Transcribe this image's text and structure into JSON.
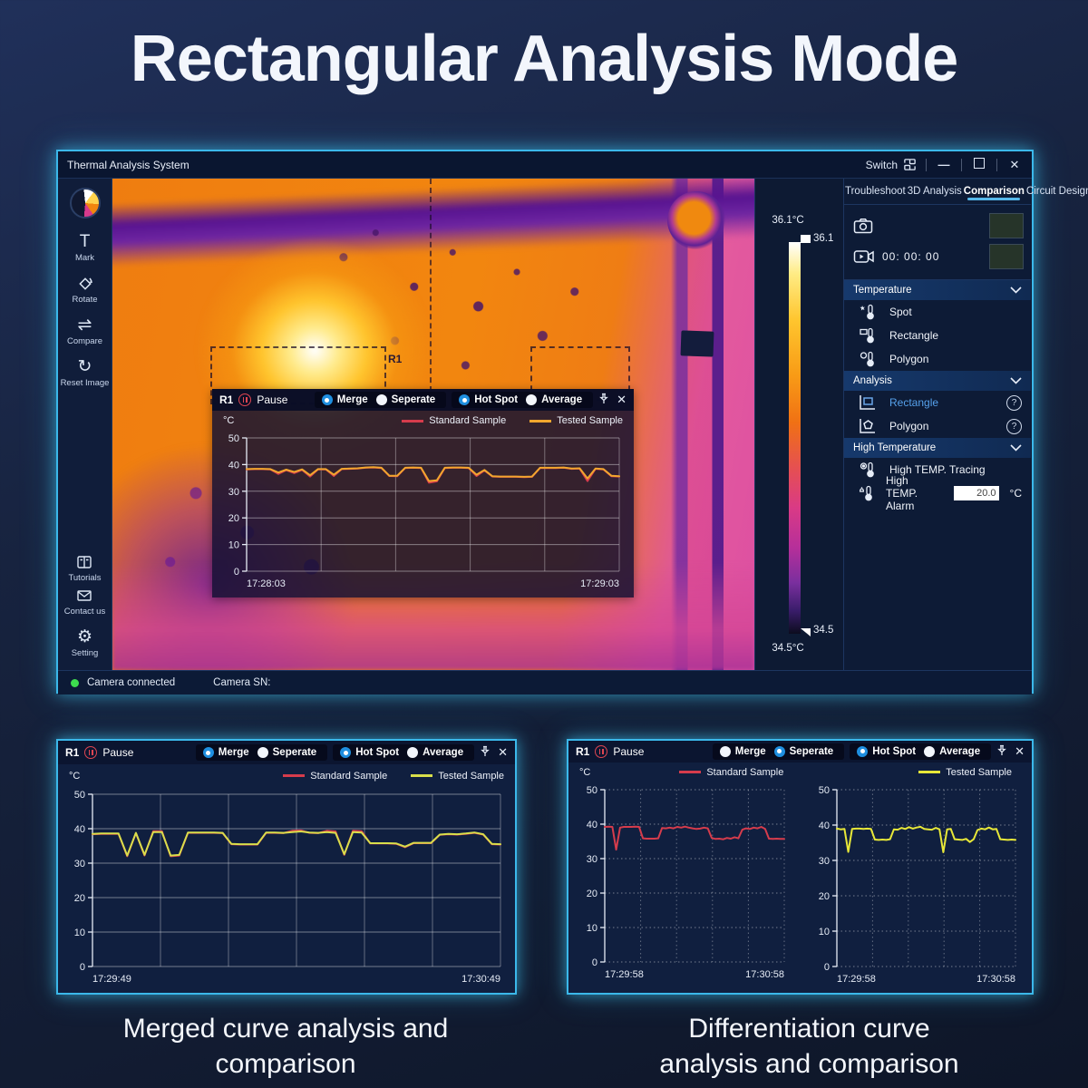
{
  "page": {
    "title": "Rectangular Analysis Mode",
    "caption_left_line1": "Merged curve analysis and",
    "caption_left_line2": "comparison",
    "caption_right_line1": "Differentiation curve",
    "caption_right_line2": "analysis and comparison"
  },
  "window": {
    "title": "Thermal Analysis System",
    "switch_label": "Switch",
    "status_camera": "Camera connected",
    "status_sn": "Camera SN:"
  },
  "sidebar": {
    "items": [
      {
        "label": "Mark"
      },
      {
        "label": "Rotate"
      },
      {
        "label": "Compare"
      },
      {
        "label": "Reset Image"
      }
    ],
    "bottom_items": [
      {
        "label": "Tutorials"
      },
      {
        "label": "Contact us"
      },
      {
        "label": "Setting"
      }
    ]
  },
  "tabs": {
    "items": [
      "Troubleshoot",
      "3D Analysis",
      "Comparison",
      "Circuit Design"
    ],
    "active": "Comparison"
  },
  "capture": {
    "record_time": "00: 00: 00"
  },
  "scale": {
    "max_label": "36.1°C",
    "max_tick": "36.1",
    "min_tick": "34.5",
    "min_label": "34.5°C"
  },
  "sections": {
    "temperature": {
      "title": "Temperature",
      "items": [
        {
          "label": "Spot"
        },
        {
          "label": "Rectangle"
        },
        {
          "label": "Polygon"
        }
      ]
    },
    "analysis": {
      "title": "Analysis",
      "items": [
        {
          "label": "Rectangle"
        },
        {
          "label": "Polygon"
        }
      ]
    },
    "high_temperature": {
      "title": "High Temperature",
      "tracing_label": "High TEMP. Tracing",
      "alarm_label": "High TEMP. Alarm",
      "alarm_value": "20.0",
      "alarm_unit": "°C"
    }
  },
  "roi": {
    "label": "R1"
  },
  "chart_ui": {
    "region": "R1",
    "pause": "Pause",
    "merge": "Merge",
    "seperate": "Seperate",
    "hot_spot": "Hot Spot",
    "average": "Average",
    "unit": "°C",
    "legend_standard": "Standard Sample",
    "legend_tested": "Tested Sample"
  },
  "chart_data": [
    {
      "id": "main-merged-monitor",
      "type": "line",
      "x_labels": [
        "17:28:03",
        "17:29:03"
      ],
      "ylim": [
        0,
        50
      ],
      "yticks": [
        0,
        10,
        20,
        30,
        40,
        50
      ],
      "x_divisions": 5,
      "grid": "solid",
      "modes": {
        "merge": true,
        "seperate": false,
        "hot_spot": true,
        "average": false
      },
      "series": [
        {
          "name": "Standard Sample",
          "color": "#d63c4c",
          "values": [
            38.2,
            38.3,
            38.3,
            38.2,
            36.5,
            37.9,
            36.8,
            38.0,
            35.5,
            38.2,
            38.2,
            35.7,
            38.3,
            38.4,
            38.5,
            38.8,
            38.9,
            38.7,
            35.7,
            35.6,
            38.7,
            38.8,
            38.7,
            33.2,
            33.7,
            38.7,
            38.8,
            38.8,
            38.7,
            35.7,
            37.8,
            35.5,
            35.4,
            35.4,
            35.4,
            35.3,
            35.4,
            38.7,
            38.7,
            38.7,
            38.8,
            38.4,
            38.5,
            33.8,
            38.4,
            38.2,
            35.6,
            35.5
          ]
        },
        {
          "name": "Tested Sample",
          "color": "#f2a72e",
          "values": [
            38.3,
            38.4,
            38.4,
            38.3,
            37.0,
            38.1,
            37.2,
            38.2,
            36.0,
            38.3,
            38.3,
            36.2,
            38.4,
            38.5,
            38.6,
            38.9,
            39.0,
            38.8,
            35.8,
            35.8,
            38.8,
            38.9,
            38.8,
            33.8,
            34.1,
            38.8,
            38.9,
            38.9,
            38.8,
            36.2,
            38.0,
            35.6,
            35.5,
            35.5,
            35.5,
            35.4,
            35.5,
            38.8,
            38.8,
            38.8,
            38.9,
            38.5,
            38.6,
            34.8,
            38.5,
            38.3,
            35.8,
            35.6
          ]
        }
      ]
    },
    {
      "id": "bottom-left-merged",
      "type": "line",
      "x_labels": [
        "17:29:49",
        "17:30:49"
      ],
      "ylim": [
        0,
        50
      ],
      "yticks": [
        0,
        10,
        20,
        30,
        40,
        50
      ],
      "x_divisions": 6,
      "grid": "solid",
      "modes": {
        "merge": true,
        "seperate": false,
        "hot_spot": true,
        "average": false
      },
      "series": [
        {
          "name": "Standard Sample",
          "color": "#d63c4c",
          "values": [
            38.4,
            38.5,
            38.5,
            38.5,
            32.0,
            38.7,
            32.2,
            39.3,
            39.3,
            32.0,
            32.2,
            38.8,
            38.8,
            38.8,
            38.8,
            38.7,
            35.5,
            35.4,
            35.4,
            35.4,
            38.8,
            38.8,
            38.7,
            39.4,
            39.5,
            38.8,
            38.7,
            39.4,
            39.2,
            32.4,
            39.4,
            39.3,
            35.7,
            35.7,
            35.7,
            35.6,
            34.6,
            35.8,
            35.8,
            35.8,
            38.2,
            38.4,
            38.3,
            38.5,
            38.8,
            38.3,
            35.5,
            35.4
          ]
        },
        {
          "name": "Tested Sample",
          "color": "#d9df4b",
          "values": [
            38.5,
            38.6,
            38.6,
            38.6,
            32.2,
            38.8,
            32.4,
            39.0,
            39.0,
            32.2,
            32.4,
            38.9,
            38.9,
            38.9,
            38.9,
            38.8,
            35.6,
            35.5,
            35.5,
            35.5,
            38.9,
            38.9,
            38.8,
            39.0,
            39.2,
            38.9,
            38.8,
            39.0,
            38.8,
            32.6,
            39.0,
            38.9,
            35.8,
            35.8,
            35.8,
            35.7,
            34.8,
            35.9,
            35.9,
            35.9,
            38.3,
            38.5,
            38.4,
            38.6,
            38.9,
            38.4,
            35.6,
            35.5
          ]
        }
      ]
    },
    {
      "id": "bottom-right-standard",
      "type": "line",
      "x_labels": [
        "17:29:58",
        "17:30:58"
      ],
      "ylim": [
        0,
        50
      ],
      "yticks": [
        0,
        10,
        20,
        30,
        40,
        50
      ],
      "x_divisions": 5,
      "grid": "dotted",
      "modes": {
        "merge": false,
        "seperate": true,
        "hot_spot": true,
        "average": false
      },
      "series": [
        {
          "name": "Standard Sample",
          "color": "#d63c4c",
          "values": [
            39.2,
            39.3,
            39.2,
            32.6,
            39.0,
            39.2,
            39.2,
            39.2,
            39.3,
            39.2,
            35.9,
            35.8,
            35.8,
            35.8,
            35.9,
            38.9,
            38.8,
            39.0,
            38.8,
            39.2,
            39.0,
            39.3,
            39.0,
            38.8,
            38.6,
            38.7,
            39.0,
            38.8,
            36.0,
            35.7,
            35.8,
            35.6,
            36.0,
            35.8,
            36.2,
            35.9,
            38.4,
            38.8,
            38.6,
            39.0,
            38.8,
            39.2,
            38.6,
            35.8,
            35.7,
            35.8,
            35.7,
            35.7
          ]
        }
      ]
    },
    {
      "id": "bottom-right-tested",
      "type": "line",
      "x_labels": [
        "17:29:58",
        "17:30:58"
      ],
      "ylim": [
        0,
        50
      ],
      "yticks": [
        0,
        10,
        20,
        30,
        40,
        50
      ],
      "x_divisions": 5,
      "grid": "dotted",
      "modes": {
        "merge": false,
        "seperate": true,
        "hot_spot": true,
        "average": false
      },
      "series": [
        {
          "name": "Tested Sample",
          "color": "#e8e838",
          "values": [
            39.0,
            38.8,
            38.9,
            32.4,
            38.9,
            39.0,
            39.0,
            38.9,
            39.0,
            38.9,
            35.9,
            35.8,
            35.9,
            35.8,
            36.0,
            38.8,
            38.7,
            39.2,
            38.9,
            39.4,
            39.0,
            39.3,
            39.5,
            38.9,
            38.8,
            38.7,
            39.2,
            38.8,
            32.3,
            38.8,
            38.9,
            36.0,
            35.9,
            35.8,
            36.1,
            35.2,
            36.0,
            38.6,
            39.0,
            38.8,
            39.3,
            38.8,
            38.9,
            36.0,
            35.9,
            35.8,
            35.9,
            35.8
          ]
        }
      ]
    }
  ]
}
